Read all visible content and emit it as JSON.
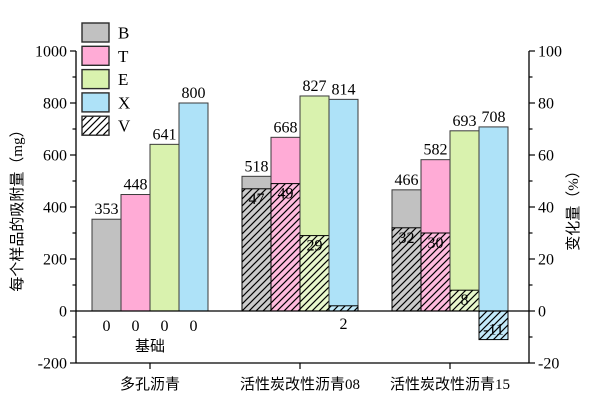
{
  "figure": {
    "background": "#ffffff",
    "frame_color": "#000000"
  },
  "chart_data": {
    "type": "bar",
    "title": "",
    "categories": [
      "多孔沥青",
      "活性炭改性沥青08",
      "活性炭改性沥青15"
    ],
    "series": [
      {
        "name": "B",
        "color": "#c1c1c1",
        "hatch_color": "#cbcbcb",
        "adsorption_mg": [
          353,
          518,
          466
        ],
        "change_pct": [
          0,
          47,
          32
        ]
      },
      {
        "name": "T",
        "color": "#ffabd6",
        "hatch_color": "#ffbbde",
        "adsorption_mg": [
          448,
          668,
          582
        ],
        "change_pct": [
          0,
          49,
          30
        ]
      },
      {
        "name": "E",
        "color": "#d9f2ae",
        "hatch_color": "#e8f7cc",
        "adsorption_mg": [
          641,
          827,
          693
        ],
        "change_pct": [
          0,
          29,
          8
        ]
      },
      {
        "name": "X",
        "color": "#aee2f8",
        "hatch_color": "#c3eafa",
        "adsorption_mg": [
          800,
          814,
          708
        ],
        "change_pct": [
          0,
          2,
          -11
        ]
      }
    ],
    "hatch_series_name": "V",
    "legend_entries": [
      "B",
      "T",
      "E",
      "X",
      "V"
    ],
    "left_axis": {
      "label": "每个样品的吸附量（mg）",
      "min": -200,
      "max": 1000,
      "major_step": 200,
      "minor_step": 100,
      "ticks": [
        "-200",
        "0",
        "200",
        "400",
        "600",
        "800",
        "1000"
      ]
    },
    "right_axis": {
      "label": "变化量（%）",
      "min": -20,
      "max": 100,
      "major_step": 20,
      "minor_step": 10,
      "ticks": [
        "-20",
        "0",
        "20",
        "40",
        "60",
        "80",
        "100"
      ]
    },
    "baseline_label": "基础",
    "grid": false,
    "legend_position": "top-left-inside"
  }
}
